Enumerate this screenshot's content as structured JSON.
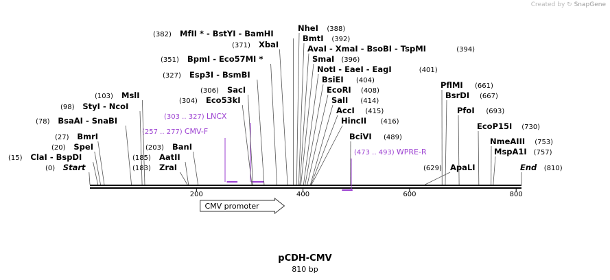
{
  "credit": {
    "prefix": "Created by",
    "brand": "SnapGene"
  },
  "title": "pCDH-CMV",
  "length": "810 bp",
  "ruler_ticks": [
    "200",
    "400",
    "600",
    "800"
  ],
  "features": [
    {
      "name": "CMV promoter",
      "start": 207,
      "end": 365
    }
  ],
  "primers": [
    {
      "range": "(257 .. 277)",
      "name": "CMV-F",
      "start": 257,
      "end": 277
    },
    {
      "range": "(303 .. 327)",
      "name": "LNCX",
      "start": 303,
      "end": 327
    },
    {
      "range": "(473 .. 493)",
      "name": "WPRE-R",
      "start": 473,
      "end": 493
    }
  ],
  "sites": [
    {
      "pos": "(382)",
      "label": "MfII * - BstYI - BamHI",
      "side": "left",
      "bp": 382
    },
    {
      "pos": "(371)",
      "label": "XbaI",
      "side": "left",
      "bp": 371
    },
    {
      "pos": "(351)",
      "label": "BpmI - Eco57MI *",
      "side": "left",
      "bp": 351
    },
    {
      "pos": "(327)",
      "label": "Esp3I - BsmBI",
      "side": "left",
      "bp": 327
    },
    {
      "pos": "(306)",
      "label": "SacI",
      "side": "left",
      "bp": 306
    },
    {
      "pos": "(304)",
      "label": "Eco53kI",
      "side": "left",
      "bp": 304
    },
    {
      "pos": "(103)",
      "label": "MslI",
      "side": "left",
      "bp": 103
    },
    {
      "pos": "(98)",
      "label": "StyI - NcoI",
      "side": "left",
      "bp": 98
    },
    {
      "pos": "(78)",
      "label": "BsaAI - SnaBI",
      "side": "left",
      "bp": 78
    },
    {
      "pos": "(27)",
      "label": "BmrI",
      "side": "left",
      "bp": 27
    },
    {
      "pos": "(20)",
      "label": "SpeI",
      "side": "left",
      "bp": 20
    },
    {
      "pos": "(15)",
      "label": "ClaI - BspDI",
      "side": "left",
      "bp": 15
    },
    {
      "pos": "(0)",
      "label": "Start",
      "side": "left",
      "bp": 0
    },
    {
      "pos": "(203)",
      "label": "BanI",
      "side": "left",
      "bp": 203
    },
    {
      "pos": "(185)",
      "label": "AatII",
      "side": "left",
      "bp": 185
    },
    {
      "pos": "(183)",
      "label": "ZraI",
      "side": "left",
      "bp": 183
    },
    {
      "pos": "(388)",
      "label": "NheI",
      "side": "right",
      "bp": 388
    },
    {
      "pos": "(392)",
      "label": "BmtI",
      "side": "right",
      "bp": 392
    },
    {
      "pos": "(394)",
      "label": "AvaI - XmaI - BsoBI - TspMI",
      "side": "right",
      "bp": 394
    },
    {
      "pos": "(396)",
      "label": "SmaI",
      "side": "right",
      "bp": 396
    },
    {
      "pos": "(401)",
      "label": "NotI - EaeI - EagI",
      "side": "right",
      "bp": 401
    },
    {
      "pos": "(404)",
      "label": "BsiEI",
      "side": "right",
      "bp": 404
    },
    {
      "pos": "(408)",
      "label": "EcoRI",
      "side": "right",
      "bp": 408
    },
    {
      "pos": "(414)",
      "label": "SalI",
      "side": "right",
      "bp": 414
    },
    {
      "pos": "(415)",
      "label": "AccI",
      "side": "right",
      "bp": 415
    },
    {
      "pos": "(416)",
      "label": "HincII",
      "side": "right",
      "bp": 416
    },
    {
      "pos": "(489)",
      "label": "BciVI",
      "side": "right",
      "bp": 489
    },
    {
      "pos": "(661)",
      "label": "PflMI",
      "side": "right",
      "bp": 661
    },
    {
      "pos": "(667)",
      "label": "BsrDI",
      "side": "right",
      "bp": 667
    },
    {
      "pos": "(693)",
      "label": "PfoI",
      "side": "right",
      "bp": 693
    },
    {
      "pos": "(730)",
      "label": "EcoP15I",
      "side": "right",
      "bp": 730
    },
    {
      "pos": "(753)",
      "label": "NmeAIII",
      "side": "right",
      "bp": 753
    },
    {
      "pos": "(757)",
      "label": "MspA1I",
      "side": "right",
      "bp": 757
    },
    {
      "pos": "(629)",
      "label": "ApaLI",
      "side": "left",
      "bp": 629
    },
    {
      "pos": "(810)",
      "label": "End",
      "side": "right",
      "bp": 810
    }
  ]
}
